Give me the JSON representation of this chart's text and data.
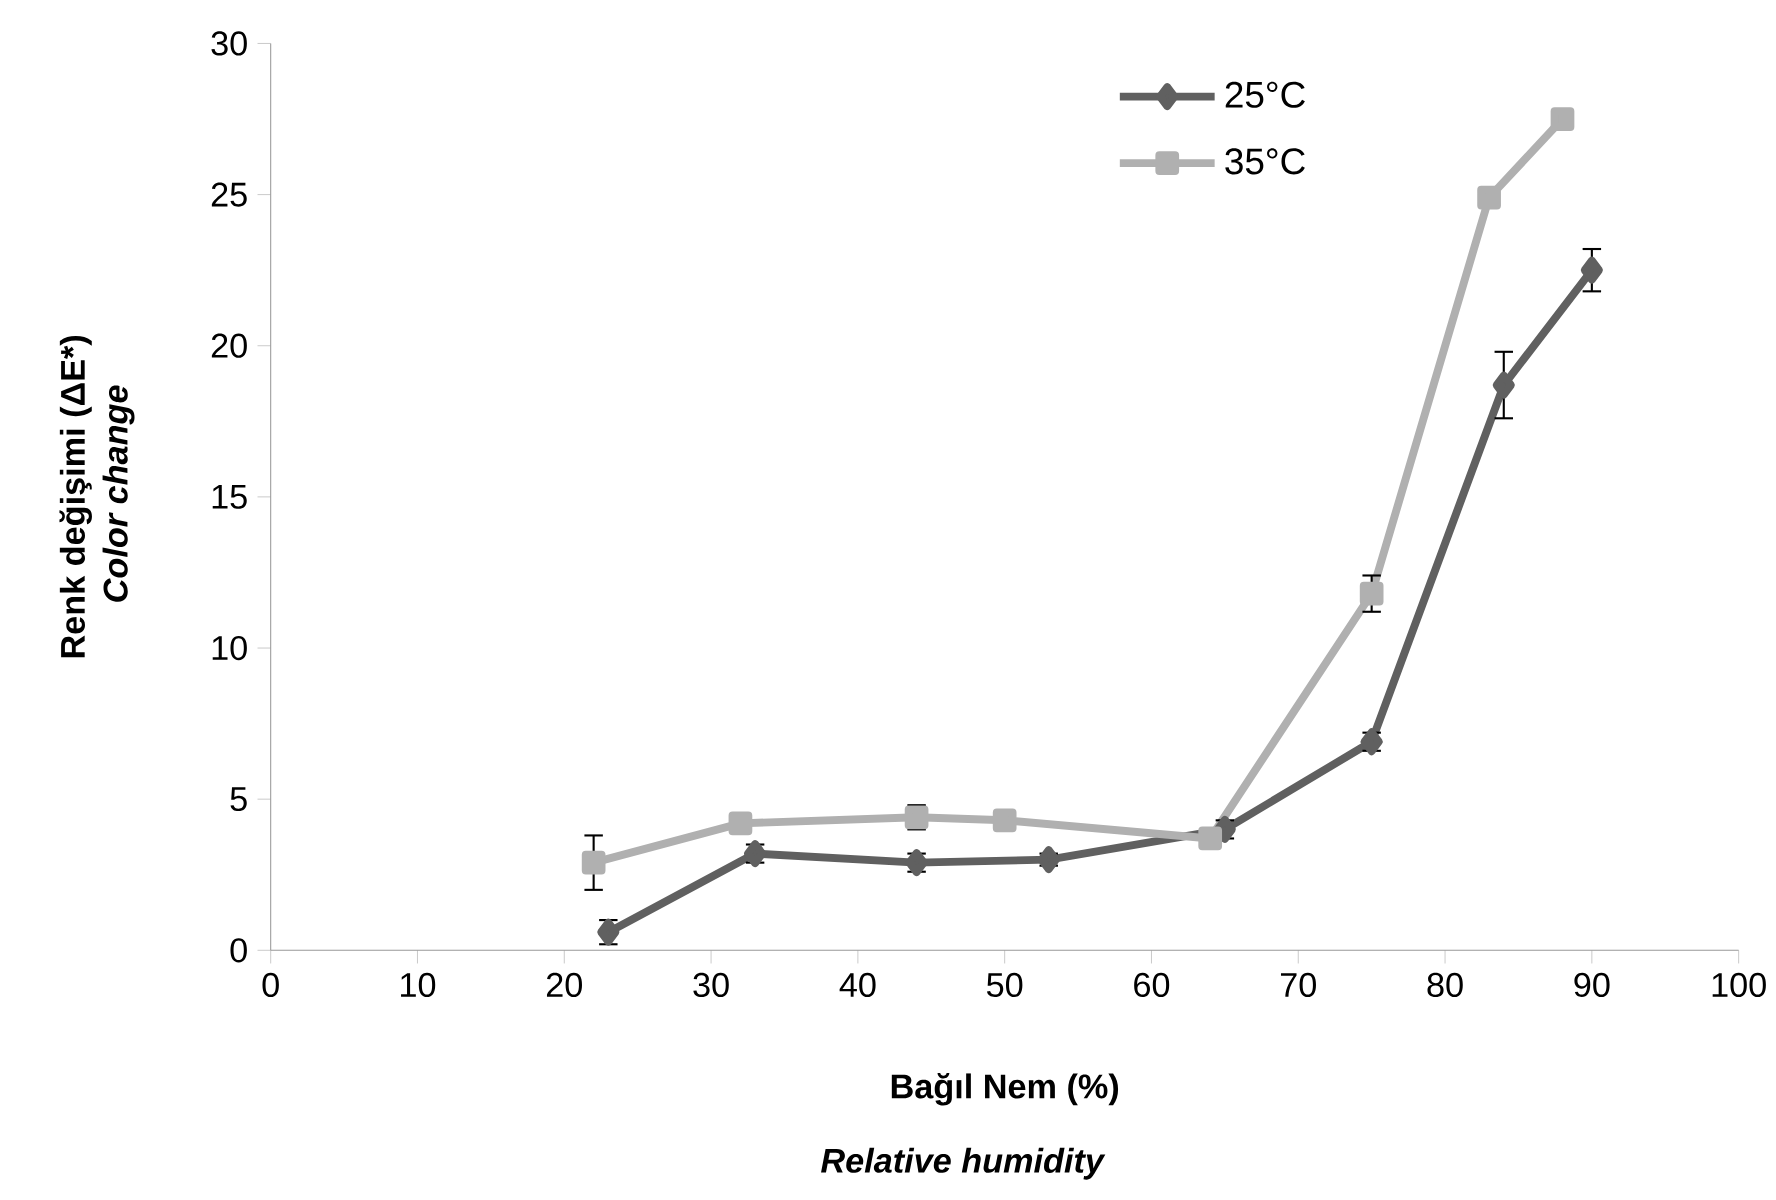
{
  "chart_data": {
    "type": "line",
    "xlabel": "Bağıl Nem (%)",
    "ylabel": "Renk değişimi (ΔE*)",
    "annotations": [
      "Relative humidity",
      "Color change"
    ],
    "xlim": [
      0,
      100
    ],
    "xticks": [
      0,
      10,
      20,
      30,
      40,
      50,
      60,
      70,
      80,
      90,
      100
    ],
    "ylim": [
      0,
      30
    ],
    "yticks": [
      0,
      5,
      10,
      15,
      20,
      25,
      30
    ],
    "grid": false,
    "legend": "top right",
    "line_style": "solid",
    "series": [
      {
        "name": "25°C",
        "color": "#606060",
        "marker": "diamond",
        "x": [
          23,
          33,
          44,
          53,
          65,
          75,
          84,
          90
        ],
        "values": [
          0.6,
          3.2,
          2.9,
          3.0,
          4.0,
          6.9,
          18.7,
          22.5
        ],
        "errors": [
          0.4,
          0.3,
          0.3,
          0.2,
          0.3,
          0.3,
          1.1,
          0.7
        ]
      },
      {
        "name": "35°C",
        "color": "#b0b0b0",
        "marker": "square",
        "x": [
          22,
          32,
          44,
          50,
          64,
          75,
          83,
          88
        ],
        "values": [
          2.9,
          4.2,
          4.4,
          4.3,
          3.7,
          11.8,
          24.9,
          27.5
        ],
        "errors": [
          0.9,
          null,
          0.4,
          null,
          null,
          0.6,
          null,
          null
        ]
      }
    ]
  }
}
